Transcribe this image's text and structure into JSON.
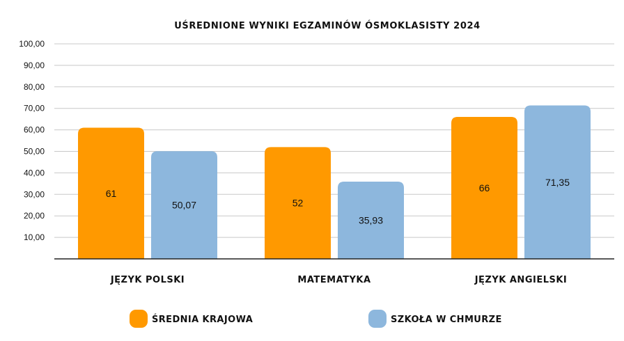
{
  "chart_data": {
    "type": "bar",
    "title": "UŚREDNIONE WYNIKI EGZAMINÓW ÓSMOKLASISTY 2024",
    "categories": [
      "JĘZYK POLSKI",
      "MATEMATYKA",
      "JĘZYK ANGIELSKI"
    ],
    "series": [
      {
        "name": "ŚREDNIA KRAJOWA",
        "color": "#FF9900",
        "values": [
          61,
          52,
          66
        ],
        "labels": [
          "61",
          "52",
          "66"
        ]
      },
      {
        "name": "SZKOŁA W CHMURZE",
        "color": "#8DB7DD",
        "values": [
          50.07,
          35.93,
          71.35
        ],
        "labels": [
          "50,07",
          "35,93",
          "71,35"
        ]
      }
    ],
    "yticks": [
      {
        "value": 10,
        "label": "10,00"
      },
      {
        "value": 20,
        "label": "20,00"
      },
      {
        "value": 30,
        "label": "30,00"
      },
      {
        "value": 40,
        "label": "40,00"
      },
      {
        "value": 50,
        "label": "50,00"
      },
      {
        "value": 60,
        "label": "60,00"
      },
      {
        "value": 70,
        "label": "70,00"
      },
      {
        "value": 80,
        "label": "80,00"
      },
      {
        "value": 90,
        "label": "90,00"
      },
      {
        "value": 100,
        "label": "100,00"
      }
    ],
    "ylim": [
      0,
      100
    ],
    "grid": true,
    "legend_position": "bottom"
  }
}
